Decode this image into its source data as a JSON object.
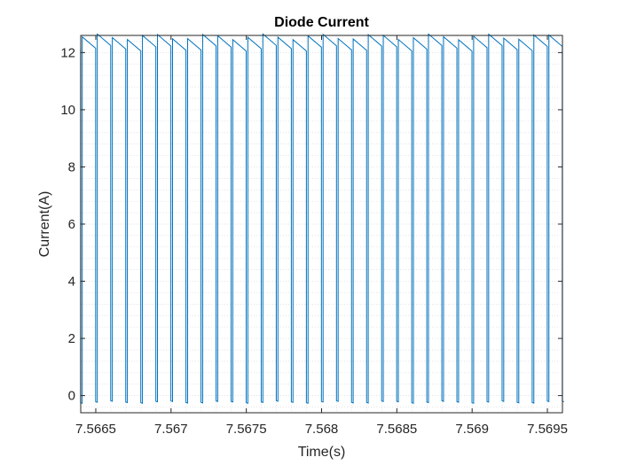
{
  "chart_data": {
    "type": "line",
    "title": "Diode Current",
    "xlabel": "Time(s)",
    "ylabel": "Current(A)",
    "xlim": [
      7.5664,
      7.5696
    ],
    "ylim": [
      -0.6,
      12.6
    ],
    "xticks": [
      7.5665,
      7.567,
      7.5675,
      7.568,
      7.5685,
      7.569,
      7.5695
    ],
    "xtick_labels": [
      "7.5665",
      "7.567",
      "7.5675",
      "7.568",
      "7.5685",
      "7.569",
      "7.5695"
    ],
    "yticks": [
      0,
      2,
      4,
      6,
      8,
      10,
      12
    ],
    "ytick_labels": [
      "0",
      "2",
      "4",
      "6",
      "8",
      "10",
      "12"
    ],
    "grid": "minor dotted",
    "legend": "none",
    "series_color": "#0072BD",
    "series": [
      {
        "switching_period_s": 0.0001,
        "first_turn_on_s": 7.56641,
        "off_duration_s": 1.1e-05,
        "on_start_current_a": [
          12.45,
          12.65
        ],
        "on_end_current_a": [
          12.05,
          12.25
        ],
        "off_current_a": [
          -0.25,
          -0.18
        ]
      }
    ]
  }
}
